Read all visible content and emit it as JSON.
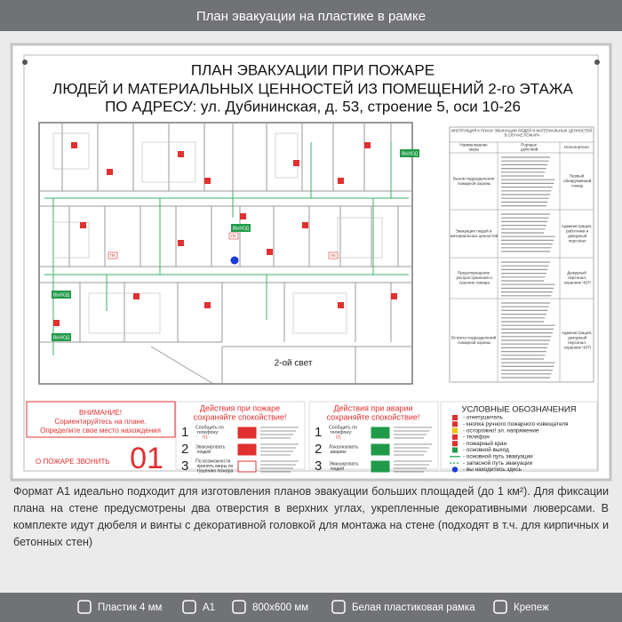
{
  "header": {
    "title": "План эвакуации на пластике в рамке"
  },
  "board": {
    "title_lines": [
      "ПЛАН ЭВАКУАЦИИ ПРИ ПОЖАРЕ",
      "ЛЮДЕЙ И МАТЕРИАЛЬНЫХ ЦЕННОСТЕЙ ИЗ ПОМЕЩЕНИЙ 2-го ЭТАЖА",
      "ПО АДРЕСУ: ул. Дубининская, д. 53, строение 5, оси 10-26"
    ],
    "plan_labels": {
      "hall": "2-ой свет",
      "exit": "ВЫХОД",
      "hydrant": "ПК"
    },
    "instruction": {
      "title": "ИНСТРУКЦИЯ К ПЛАНУ ЭВАКУАЦИИ ЛЮДЕЙ И МАТЕРИАЛЬНЫХ ЦЕННОСТЕЙ В СЛУЧАЕ ПОЖАРА",
      "columns": [
        "Наименование меры",
        "Порядок действий",
        "Исполнители"
      ],
      "rows": [
        {
          "measure": "Вызов подразделения пожарной охраны",
          "executor": "Первый обнаруживший пожар"
        },
        {
          "measure": "Эвакуация людей и материальных ценностей",
          "executor": "Администрация, работники и дежурный персонал"
        },
        {
          "measure": "Предотвращение распространения и тушение пожара",
          "executor": "Дежурный персонал, охранник ЧОП"
        },
        {
          "measure": "Встреча подразделений пожарной охраны",
          "executor": "Администрация, дежурный персонал, охранник ЧОП"
        }
      ]
    },
    "attention": {
      "title": "ВНИМАНИЕ!",
      "line1": "Сориентируйтесь на плане.",
      "line2": "Определите свое место нахождения"
    },
    "call": {
      "label": "О ПОЖАРЕ ЗВОНИТЬ",
      "number": "01"
    },
    "fire_actions": {
      "title": "Действия при пожаре",
      "subtitle": "сохраняйте спокойствие!",
      "steps": [
        {
          "num": "1",
          "text": "Сообщить по телефону:",
          "extra": "01"
        },
        {
          "num": "2",
          "text": "Эвакуировать людей"
        },
        {
          "num": "3",
          "text": "По возможности принять меры по тушению пожара"
        }
      ]
    },
    "accident_actions": {
      "title": "Действия при аварии",
      "subtitle": "сохраняйте спокойствие!",
      "steps": [
        {
          "num": "1",
          "text": "Сообщить по телефону:",
          "extra": "01"
        },
        {
          "num": "2",
          "text": "Локализовать аварию"
        },
        {
          "num": "3",
          "text": "Эвакуировать людей"
        }
      ]
    },
    "legend": {
      "title": "УСЛОВНЫЕ ОБОЗНАЧЕНИЯ",
      "items": [
        "- огнетушитель",
        "- кнопка ручного пожарного извещателя",
        "- осторожно! эл. напряжение",
        "- телефон",
        "- пожарный кран",
        "- основной выход",
        "- основной путь эвакуации",
        "- запасной путь эвакуации",
        "- вы находитесь здесь"
      ]
    }
  },
  "description": "Формат А1 идеально подходит для изготовления планов эвакуации больших площадей (до 1 км²). Для фиксации плана на стене предусмотрены два отверстия в верхних углах, укрепленные декоративными люверсами. В комплекте идут дюбеля и винты с декоративной головкой для монтажа на стене (подходят в т.ч. для кирпичных и бетонных стен)",
  "footer": {
    "items": [
      "Пластик 4 мм",
      "А1",
      "800х600 мм",
      "Белая пластиковая рамка",
      "Крепеж"
    ]
  }
}
